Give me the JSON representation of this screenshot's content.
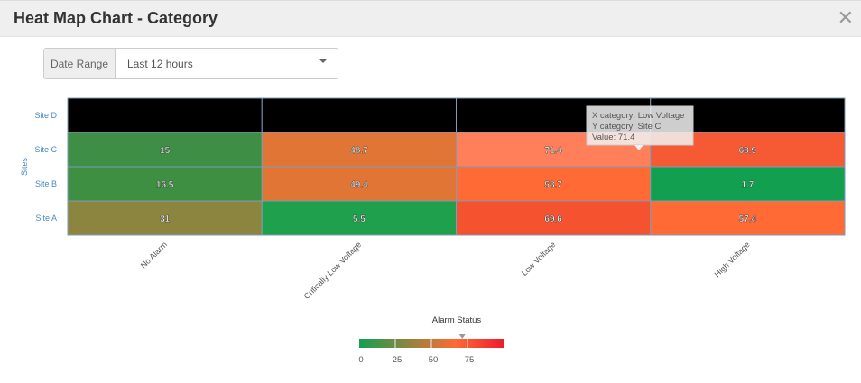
{
  "header": {
    "title": "Heat Map Chart - Category",
    "close_icon": "close-icon"
  },
  "filter": {
    "label": "Date Range",
    "value": "Last 12 hours"
  },
  "chart_data": {
    "type": "heatmap",
    "xlabel": "",
    "ylabel": "Sites",
    "x_categories": [
      "No Alarm",
      "Critically Low Voltage",
      "Low Voltage",
      "High Voltage"
    ],
    "y_categories": [
      "Site D",
      "Site C",
      "Site B",
      "Site A"
    ],
    "values": [
      [
        null,
        null,
        null,
        null
      ],
      [
        15,
        48.7,
        71.4,
        68.9
      ],
      [
        16.5,
        49.4,
        58.7,
        1.7
      ],
      [
        31,
        5.5,
        69.6,
        57.4
      ]
    ],
    "cell_colors": [
      [
        "#000000",
        "#000000",
        "#000000",
        "#000000"
      ],
      [
        "#3e8f45",
        "#e07535",
        "#ff7f5a",
        "#f55a35"
      ],
      [
        "#3f8f43",
        "#e07535",
        "#ff6a35",
        "#12a050"
      ],
      [
        "#8c8540",
        "#1fa04c",
        "#f5522f",
        "#ff6a35"
      ]
    ],
    "colorscale": {
      "title": "Alarm Status",
      "min": 0,
      "max": 100,
      "ticks": [
        "0",
        "25",
        "50",
        "75"
      ],
      "colors": [
        "#12a050",
        "#8c8540",
        "#ff6a35",
        "#ee1c2e"
      ],
      "marker_value": 71.4
    },
    "tooltip": {
      "lines": [
        "X category: Low Voltage",
        "Y category: Site C",
        "Value: 71.4"
      ]
    }
  }
}
